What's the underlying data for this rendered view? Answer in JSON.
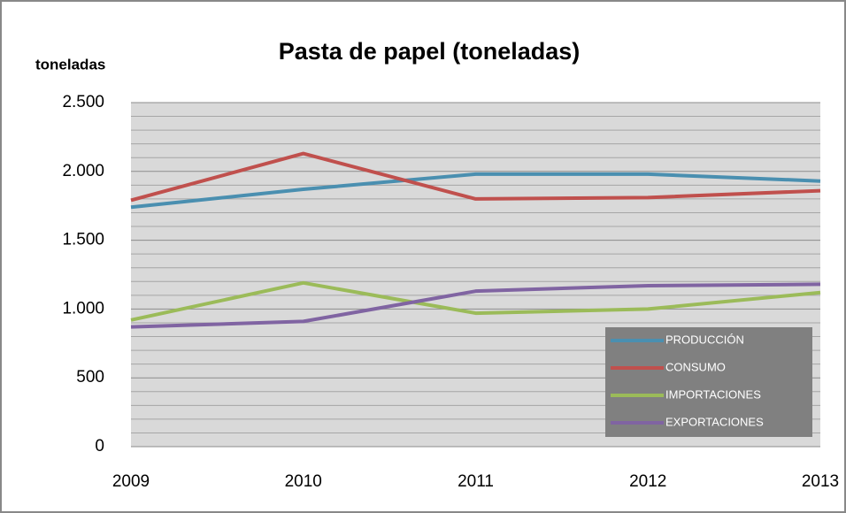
{
  "chart_data": {
    "type": "line",
    "title": "Pasta de papel (toneladas)",
    "y_label": "toneladas",
    "categories": [
      "2009",
      "2010",
      "2011",
      "2012",
      "2013"
    ],
    "series": [
      {
        "name": "PRODUCCIÓN",
        "color": "#4a8fb0",
        "values": [
          1740,
          1870,
          1980,
          1980,
          1930
        ]
      },
      {
        "name": "CONSUMO",
        "color": "#c0504d",
        "values": [
          1790,
          2130,
          1800,
          1810,
          1860
        ]
      },
      {
        "name": "IMPORTACIONES",
        "color": "#9bbb59",
        "values": [
          920,
          1190,
          970,
          1000,
          1120
        ]
      },
      {
        "name": "EXPORTACIONES",
        "color": "#8064a2",
        "values": [
          870,
          910,
          1130,
          1170,
          1180
        ]
      }
    ],
    "ylim": [
      0,
      2500
    ],
    "yticks": [
      0,
      500,
      {
        "value": 1000,
        "label": "1.000"
      },
      {
        "value": 1500,
        "label": "1.500"
      },
      {
        "value": 2000,
        "label": "2.000"
      },
      {
        "value": 2500,
        "label": "2.500"
      }
    ],
    "grid": true,
    "legend": "lower right"
  }
}
